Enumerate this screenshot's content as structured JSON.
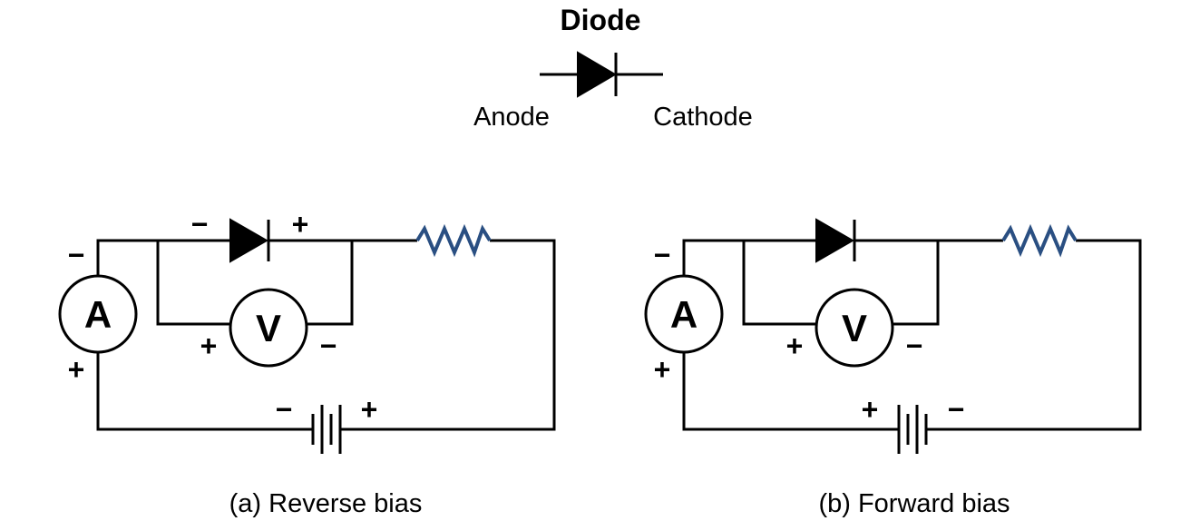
{
  "legend": {
    "title": "Diode",
    "anode_label": "Anode",
    "cathode_label": "Cathode"
  },
  "circuits": [
    {
      "caption": "(a) Reverse bias",
      "ammeter_letter": "A",
      "voltmeter_letter": "V",
      "signs": {
        "ammeter_top": "−",
        "ammeter_bottom": "+",
        "diode_left": "−",
        "diode_right": "+",
        "voltmeter_left": "+",
        "voltmeter_right": "−",
        "battery_left": "−",
        "battery_right": "+"
      }
    },
    {
      "caption": "(b) Forward bias",
      "ammeter_letter": "A",
      "voltmeter_letter": "V",
      "signs": {
        "ammeter_top": "−",
        "ammeter_bottom": "+",
        "voltmeter_left": "+",
        "voltmeter_right": "−",
        "battery_left": "+",
        "battery_right": "−"
      }
    }
  ],
  "colors": {
    "wire": "#000000",
    "resistor": "#2a4f82",
    "background": "#ffffff"
  }
}
